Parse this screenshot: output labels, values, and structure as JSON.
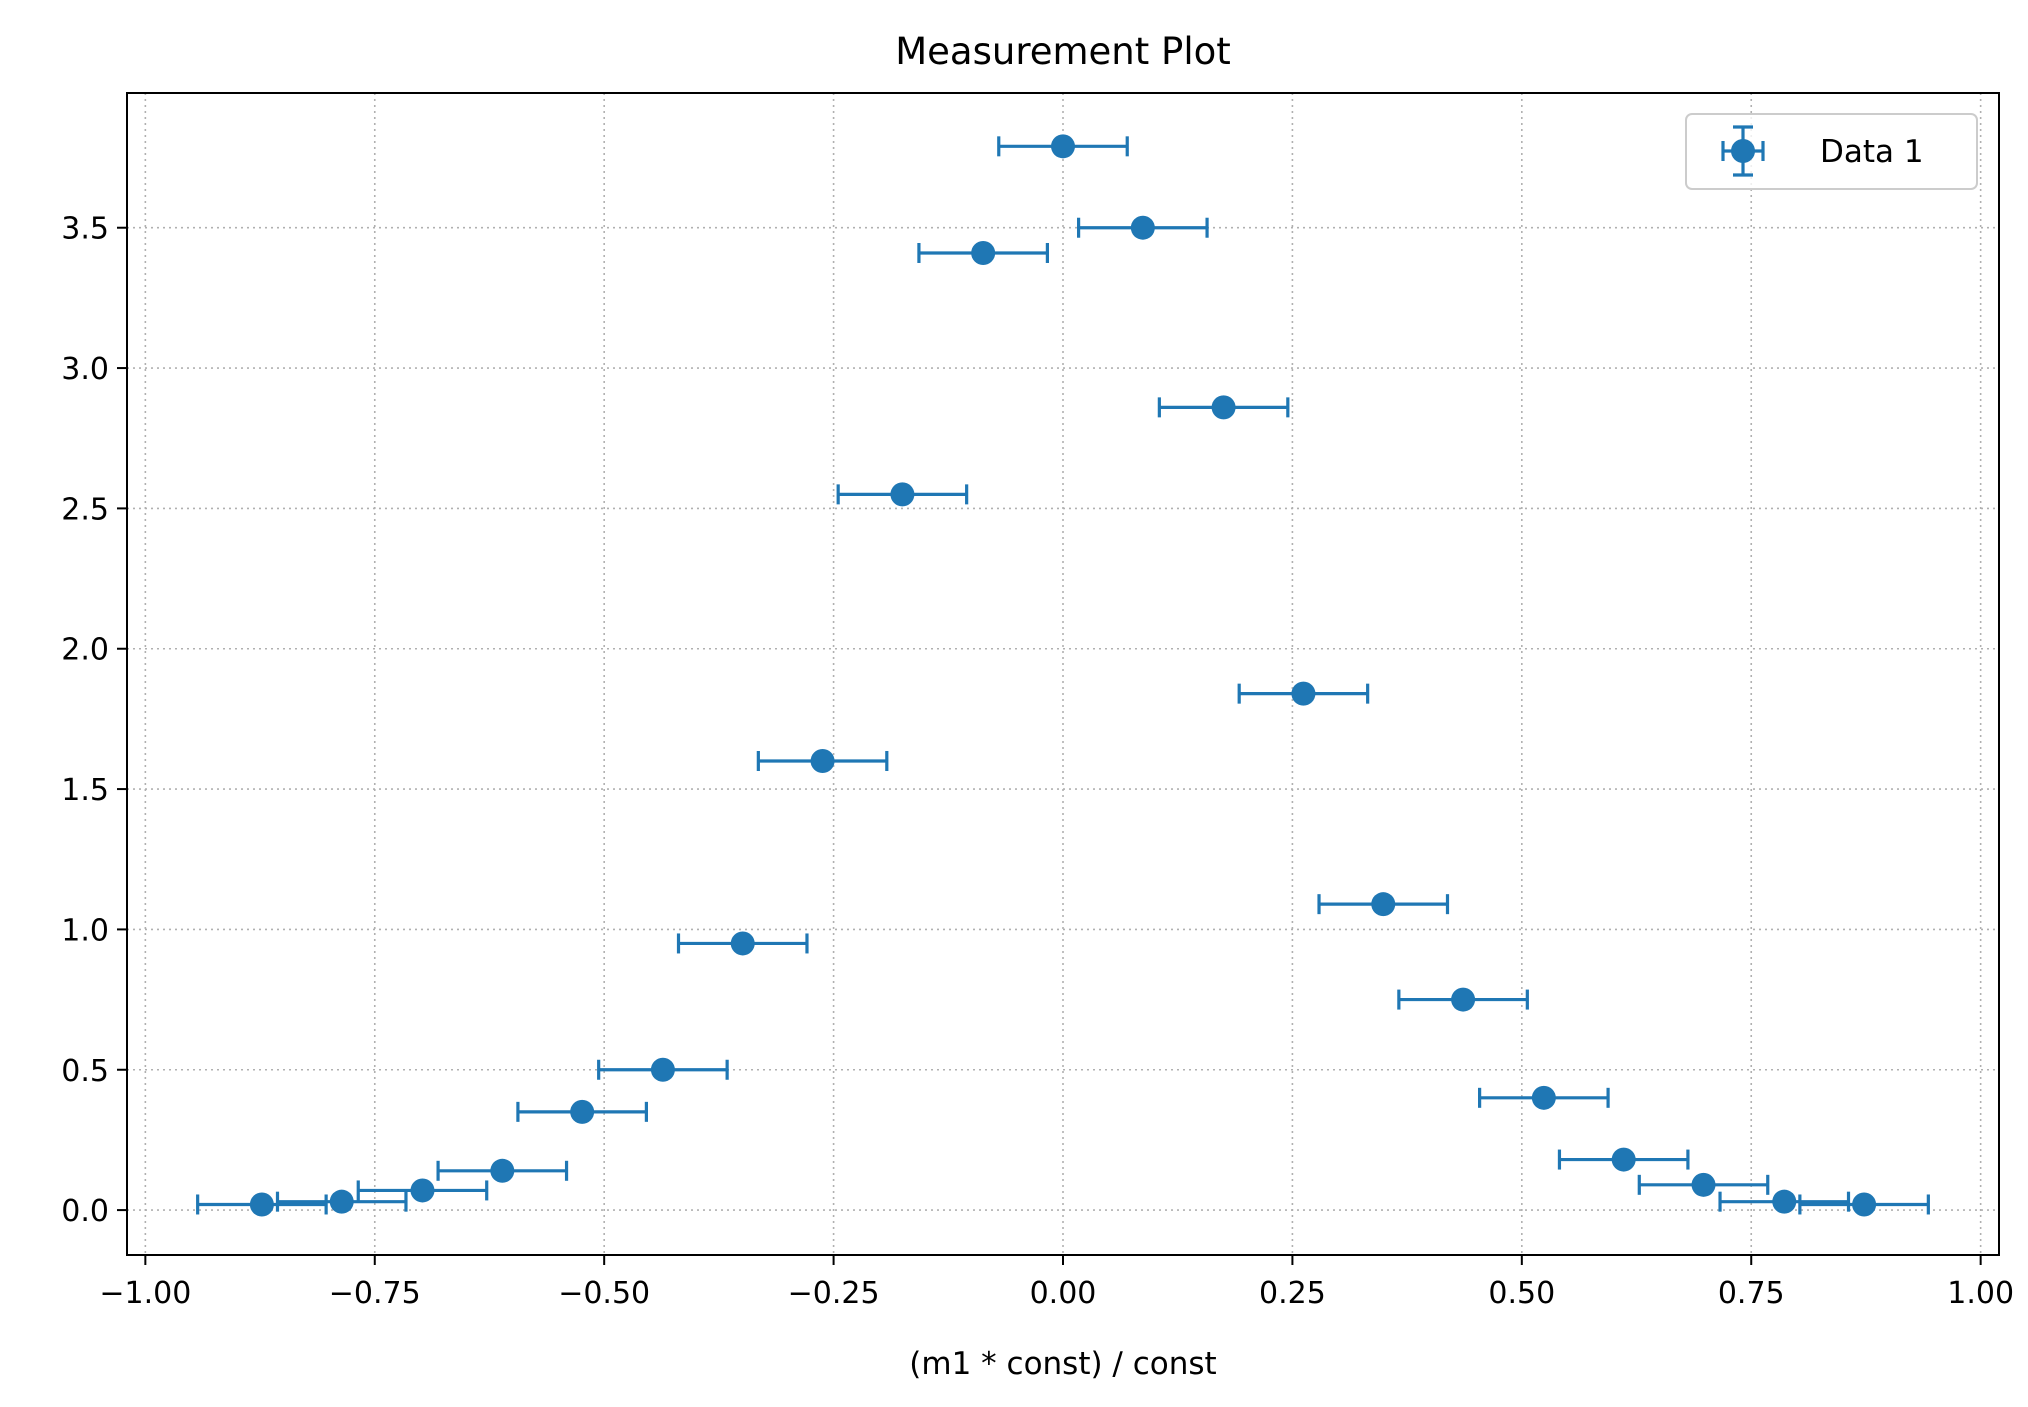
{
  "chart_data": {
    "type": "scatter",
    "title": "Measurement Plot",
    "xlabel": "(m1 * const) / const",
    "ylabel": "",
    "xlim": [
      -1.02,
      1.02
    ],
    "ylim": [
      -0.16,
      3.98
    ],
    "xticks": [
      "−1.00",
      "−0.75",
      "−0.50",
      "−0.25",
      "0.00",
      "0.25",
      "0.50",
      "0.75",
      "1.00"
    ],
    "xtick_values": [
      -1.0,
      -0.75,
      -0.5,
      -0.25,
      0.0,
      0.25,
      0.5,
      0.75,
      1.0
    ],
    "yticks": [
      "0.0",
      "0.5",
      "1.0",
      "1.5",
      "2.0",
      "2.5",
      "3.0",
      "3.5"
    ],
    "ytick_values": [
      0.0,
      0.5,
      1.0,
      1.5,
      2.0,
      2.5,
      3.0,
      3.5
    ],
    "grid": true,
    "legend_position": "top-right",
    "color": "#1f77b4",
    "series": [
      {
        "name": "Data 1",
        "x": [
          -0.873,
          -0.786,
          -0.698,
          -0.611,
          -0.524,
          -0.436,
          -0.349,
          -0.262,
          -0.175,
          -0.087,
          0.0,
          0.087,
          0.175,
          0.262,
          0.349,
          0.436,
          0.524,
          0.611,
          0.698,
          0.786,
          0.873
        ],
        "y": [
          0.02,
          0.03,
          0.07,
          0.14,
          0.35,
          0.5,
          0.95,
          1.6,
          2.55,
          3.41,
          3.79,
          3.5,
          2.86,
          1.84,
          1.09,
          0.75,
          0.4,
          0.18,
          0.09,
          0.03,
          0.02
        ],
        "xerr": 0.07
      }
    ]
  }
}
